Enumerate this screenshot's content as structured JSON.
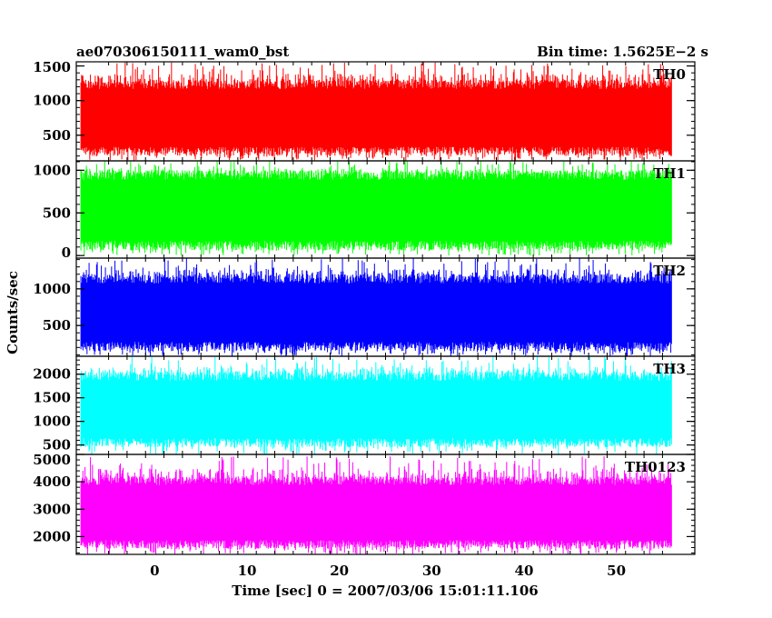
{
  "header": {
    "title": "ae070306150111_wam0_bst",
    "bin_time": "Bin time: 1.5625E−2 s"
  },
  "chart_data": {
    "type": "line",
    "xlabel": "Time [sec] 0 = 2007/03/06 15:01:11.106",
    "ylabel": "Counts/sec",
    "xlim": [
      -8.5,
      58.5
    ],
    "x_data_range": [
      -8.0,
      56.0
    ],
    "x_ticks": [
      0,
      10,
      20,
      30,
      40,
      50
    ],
    "grid": false,
    "panels": [
      {
        "name": "TH0",
        "color": "#ff0000",
        "ylim": [
          130,
          1560
        ],
        "ticks": [
          500,
          1000,
          1500
        ],
        "baseline_range": [
          200,
          1300
        ],
        "peak_max": 1560,
        "trough_min": 130
      },
      {
        "name": "TH1",
        "color": "#00ff00",
        "ylim": [
          -30,
          1110
        ],
        "ticks": [
          0,
          500,
          1000
        ],
        "baseline_range": [
          60,
          1000
        ],
        "peak_max": 1110,
        "trough_min": 0
      },
      {
        "name": "TH2",
        "color": "#0000ff",
        "ylim": [
          80,
          1420
        ],
        "ticks": [
          500,
          1000
        ],
        "baseline_range": [
          150,
          1200
        ],
        "peak_max": 1420,
        "trough_min": 80
      },
      {
        "name": "TH3",
        "color": "#00ffff",
        "ylim": [
          300,
          2380
        ],
        "ticks": [
          500,
          1000,
          1500,
          2000
        ],
        "baseline_range": [
          450,
          2050
        ],
        "peak_max": 2380,
        "trough_min": 300
      },
      {
        "name": "TH0123",
        "color": "#ff00ff",
        "ylim": [
          1350,
          5000
        ],
        "ticks": [
          2000,
          3000,
          4000,
          5000
        ],
        "baseline_range": [
          1550,
          4200
        ],
        "peak_max": 4950,
        "trough_min": 1350
      }
    ]
  }
}
